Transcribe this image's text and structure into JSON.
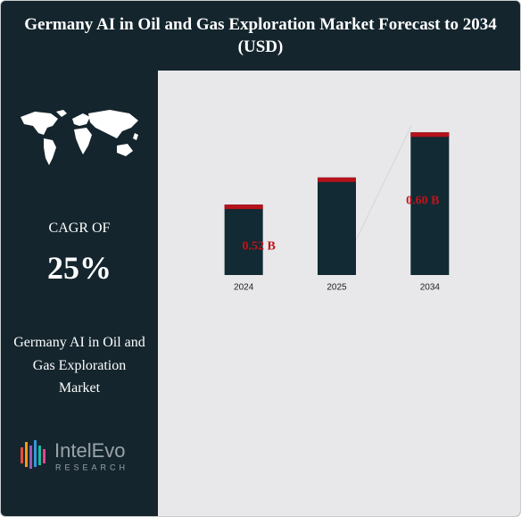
{
  "chart_data": {
    "type": "bar",
    "title": "Germany AI in Oil and Gas Exploration Market Forecast to 2034",
    "subtitle": "(USD)",
    "categories": [
      "2024",
      "2025",
      "2034"
    ],
    "values": [
      0.52,
      0.55,
      0.6
    ],
    "value_labels": [
      "0.52 B",
      null,
      "0.60 B"
    ],
    "color": "#112a33",
    "cap_color": "#b5121b",
    "label_color": "#c0141c",
    "ylim": [
      0.442,
      0.62
    ],
    "grid": false
  },
  "side_panel": {
    "cagr_label": "CAGR OF",
    "cagr_value": "25%",
    "market_name": "Germany AI in Oil and Gas Exploration Market"
  },
  "logo": {
    "name": "IntelEvo",
    "tagline": "RESEARCH"
  }
}
